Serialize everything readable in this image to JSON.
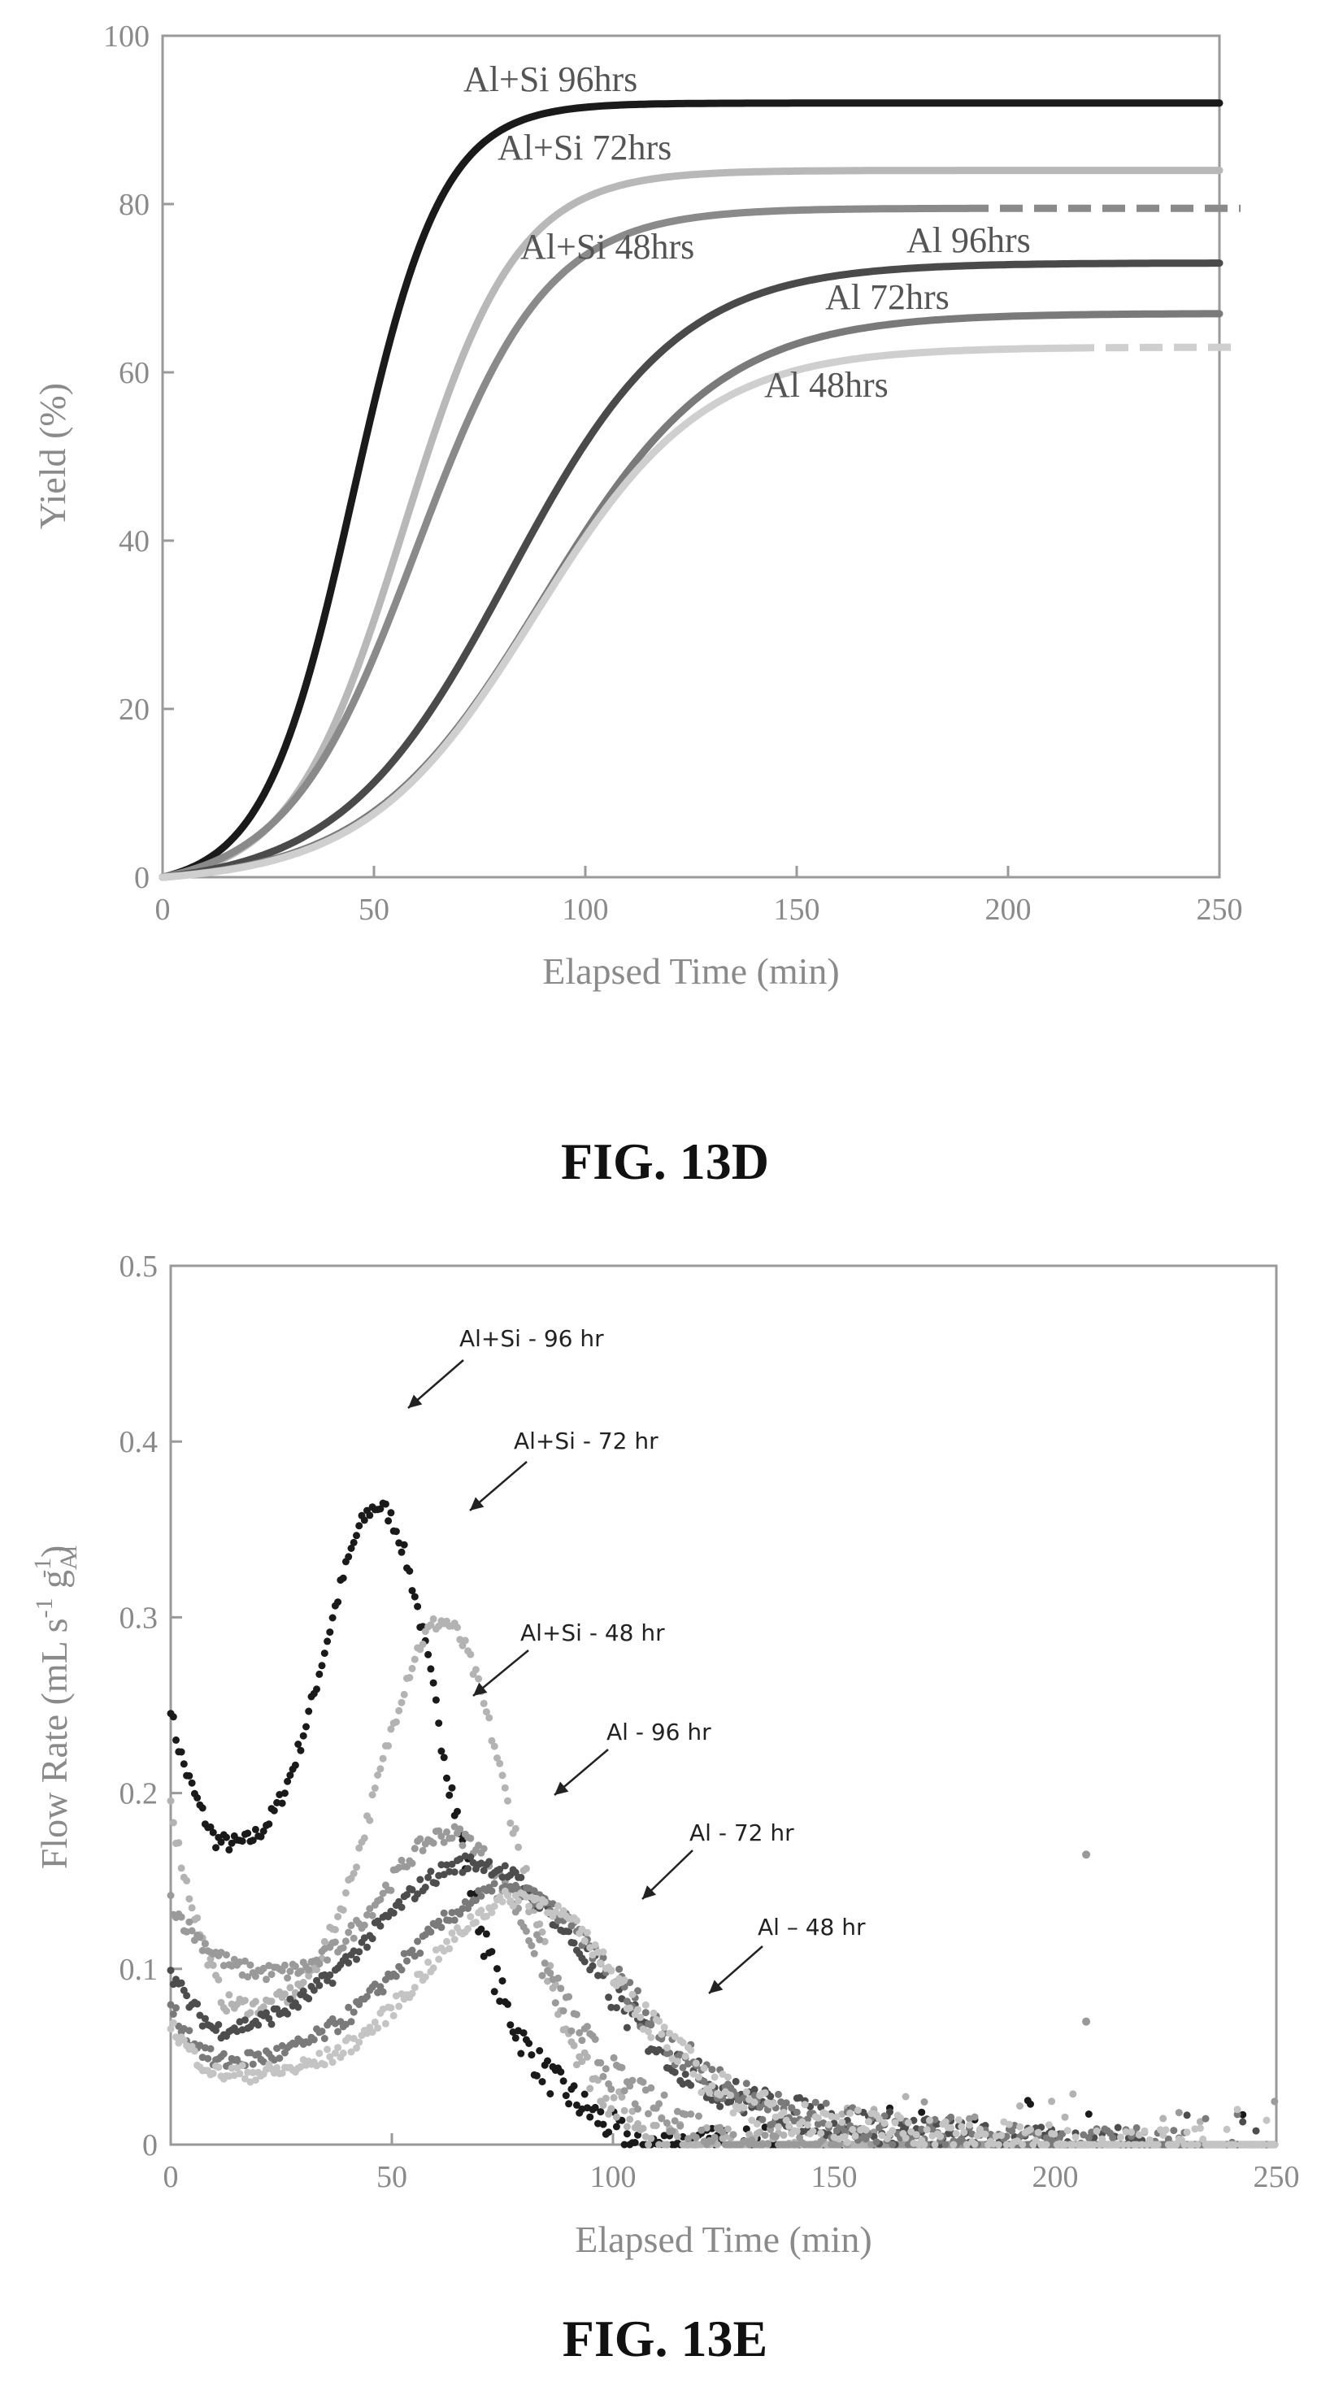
{
  "figures": [
    {
      "caption": "FIG. 13D",
      "chart_data": {
        "type": "line",
        "title": "",
        "xlabel": "Elapsed Time (min)",
        "ylabel": "Yield (%)",
        "xlim": [
          0,
          250
        ],
        "ylim": [
          0,
          100
        ],
        "xticks": [
          "0",
          "50",
          "100",
          "150",
          "200",
          "250"
        ],
        "yticks": [
          "0",
          "20",
          "40",
          "60",
          "80",
          "100"
        ],
        "grid": false,
        "legend": "inline labels",
        "series": [
          {
            "name": "Al+Si 96hrs",
            "color": "#1a1a1a",
            "final_yield": 92,
            "midpoint_min": 45,
            "rate": 0.095
          },
          {
            "name": "Al+Si 72hrs",
            "color": "#b8b8b8",
            "final_yield": 84,
            "midpoint_min": 57,
            "rate": 0.075
          },
          {
            "name": "Al+Si 48hrs",
            "color": "#8a8a8a",
            "final_yield": 79.5,
            "midpoint_min": 60,
            "rate": 0.065,
            "dashed_tail_from_min": 190
          },
          {
            "name": "Al  96hrs",
            "color": "#4a4a4a",
            "final_yield": 73,
            "midpoint_min": 82,
            "rate": 0.05
          },
          {
            "name": "Al 72hrs",
            "color": "#7a7a7a",
            "final_yield": 67,
            "midpoint_min": 90,
            "rate": 0.048
          },
          {
            "name": "Al 48hrs",
            "color": "#cfcfcf",
            "final_yield": 63,
            "midpoint_min": 88,
            "rate": 0.05,
            "dashed_tail_from_min": 215
          }
        ]
      }
    },
    {
      "caption": "FIG. 13E",
      "chart_data": {
        "type": "scatter",
        "title": "",
        "xlabel": "Elapsed Time (min)",
        "ylabel_main": "Flow Rate (mL s",
        "ylabel_sup1": "-1",
        "ylabel_mid": " g",
        "ylabel_sub": "Al",
        "ylabel_sup2": "-1",
        "ylabel_end": ")",
        "xlim": [
          0,
          250
        ],
        "ylim": [
          0,
          0.5
        ],
        "xticks": [
          "0",
          "50",
          "100",
          "150",
          "200",
          "250"
        ],
        "yticks": [
          "0",
          "0.1",
          "0.2",
          "0.3",
          "0.4",
          "0.5"
        ],
        "grid": false,
        "legend": "annotated arrows",
        "series": [
          {
            "name": "Al+Si - 96 hr",
            "color": "#1a1a1a",
            "y0": 0.25,
            "base": 0.17,
            "trough_min": 10,
            "peak": 0.43,
            "peak_min": 48,
            "width": 13,
            "end_min": 105
          },
          {
            "name": "Al+Si - 72 hr",
            "color": "#b3b3b3",
            "y0": 0.2,
            "base": 0.08,
            "trough_min": 12,
            "peak": 0.335,
            "peak_min": 62,
            "width": 15,
            "end_min": 118
          },
          {
            "name": "Al+Si - 48 hr",
            "color": "#9a9a9a",
            "y0": 0.14,
            "base": 0.1,
            "trough_min": 14,
            "peak": 0.22,
            "peak_min": 65,
            "width": 17,
            "end_min": 130
          },
          {
            "name": "Al - 96 hr",
            "color": "#4d4d4d",
            "y0": 0.1,
            "base": 0.06,
            "trough_min": 10,
            "peak": 0.18,
            "peak_min": 70,
            "width": 24,
            "end_min": 190
          },
          {
            "name": "Al - 72 hr",
            "color": "#7a7a7a",
            "y0": 0.08,
            "base": 0.045,
            "trough_min": 10,
            "peak": 0.16,
            "peak_min": 77,
            "width": 24,
            "end_min": 200
          },
          {
            "name": "Al – 48 hr",
            "color": "#c4c4c4",
            "y0": 0.07,
            "base": 0.04,
            "trough_min": 10,
            "peak": 0.155,
            "peak_min": 80,
            "width": 22,
            "end_min": 205
          }
        ],
        "outliers": [
          {
            "x": 207,
            "y": 0.165
          },
          {
            "x": 207,
            "y": 0.07
          }
        ]
      }
    }
  ]
}
